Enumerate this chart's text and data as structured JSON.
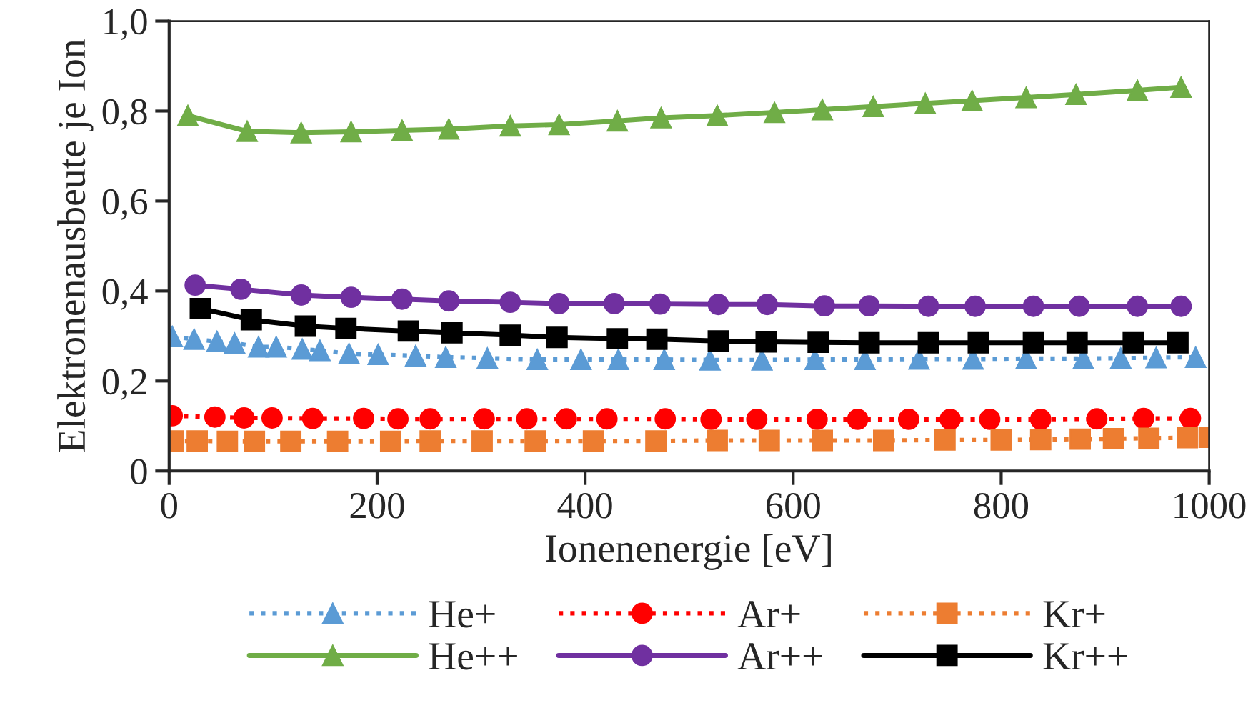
{
  "chart_data": {
    "type": "line",
    "xlabel": "Ionenenergie [eV]",
    "ylabel": "Elektronenausbeute je Ion",
    "xlim": [
      0,
      1000
    ],
    "xticks": [
      0,
      200,
      400,
      600,
      800,
      1000
    ],
    "ylim": [
      0,
      1.0
    ],
    "yticks": [
      {
        "value": 0,
        "label": "0"
      },
      {
        "value": 0.2,
        "label": "0,2"
      },
      {
        "value": 0.4,
        "label": "0,4"
      },
      {
        "value": 0.6,
        "label": "0,6"
      },
      {
        "value": 0.8,
        "label": "0,8"
      },
      {
        "value": 1.0,
        "label": "1,0"
      }
    ],
    "grid": false,
    "legend": "bottom",
    "series": [
      {
        "name": "He+",
        "color": "#5b9bd5",
        "marker": "triangle",
        "line_style": "dotted",
        "x": [
          3,
          24,
          46,
          63,
          86,
          103,
          128,
          145,
          173,
          201,
          237,
          266,
          306,
          354,
          396,
          432,
          476,
          520,
          570,
          621,
          669,
          721,
          773,
          824,
          879,
          915,
          949,
          987
        ],
        "values": [
          0.299,
          0.293,
          0.288,
          0.284,
          0.276,
          0.276,
          0.271,
          0.268,
          0.261,
          0.259,
          0.256,
          0.253,
          0.251,
          0.248,
          0.248,
          0.248,
          0.248,
          0.247,
          0.247,
          0.248,
          0.248,
          0.249,
          0.249,
          0.25,
          0.25,
          0.251,
          0.252,
          0.253
        ]
      },
      {
        "name": "Ar+",
        "color": "#ff0000",
        "marker": "circle",
        "line_style": "dotted",
        "x": [
          3,
          44,
          72,
          99,
          138,
          187,
          220,
          251,
          303,
          344,
          382,
          421,
          477,
          521,
          565,
          623,
          662,
          711,
          751,
          789,
          838,
          892,
          937,
          982
        ],
        "values": [
          0.123,
          0.12,
          0.118,
          0.118,
          0.117,
          0.117,
          0.116,
          0.116,
          0.116,
          0.116,
          0.116,
          0.116,
          0.116,
          0.115,
          0.115,
          0.115,
          0.115,
          0.115,
          0.115,
          0.115,
          0.115,
          0.116,
          0.117,
          0.117
        ]
      },
      {
        "name": "Kr+",
        "color": "#ed7d31",
        "marker": "square",
        "line_style": "dotted",
        "x": [
          4,
          27,
          56,
          82,
          117,
          162,
          213,
          251,
          301,
          352,
          408,
          468,
          527,
          577,
          628,
          687,
          746,
          800,
          838,
          876,
          908,
          942,
          979,
          1000
        ],
        "values": [
          0.067,
          0.067,
          0.066,
          0.066,
          0.066,
          0.066,
          0.066,
          0.067,
          0.067,
          0.067,
          0.067,
          0.067,
          0.068,
          0.068,
          0.068,
          0.068,
          0.069,
          0.069,
          0.07,
          0.071,
          0.072,
          0.073,
          0.074,
          0.075
        ]
      },
      {
        "name": "He++",
        "color": "#70ad47",
        "marker": "triangle",
        "line_style": "solid",
        "x": [
          18,
          75,
          127,
          175,
          224,
          269,
          328,
          375,
          431,
          473,
          527,
          582,
          628,
          677,
          727,
          772,
          824,
          872,
          931,
          973
        ],
        "values": [
          0.79,
          0.755,
          0.752,
          0.754,
          0.757,
          0.76,
          0.767,
          0.77,
          0.778,
          0.785,
          0.79,
          0.797,
          0.803,
          0.81,
          0.817,
          0.823,
          0.83,
          0.837,
          0.846,
          0.853
        ]
      },
      {
        "name": "Ar++",
        "color": "#7030a0",
        "marker": "circle",
        "line_style": "solid",
        "x": [
          25,
          69,
          127,
          175,
          224,
          269,
          328,
          375,
          428,
          472,
          528,
          575,
          630,
          673,
          730,
          775,
          831,
          875,
          931,
          973
        ],
        "values": [
          0.413,
          0.404,
          0.391,
          0.386,
          0.382,
          0.378,
          0.375,
          0.372,
          0.372,
          0.371,
          0.37,
          0.37,
          0.367,
          0.367,
          0.366,
          0.366,
          0.366,
          0.366,
          0.366,
          0.366
        ]
      },
      {
        "name": "Kr++",
        "color": "#000000",
        "marker": "square",
        "line_style": "solid",
        "x": [
          30,
          79,
          131,
          170,
          230,
          272,
          328,
          373,
          431,
          469,
          528,
          574,
          624,
          673,
          730,
          778,
          831,
          873,
          927,
          970
        ],
        "values": [
          0.361,
          0.336,
          0.322,
          0.317,
          0.311,
          0.307,
          0.302,
          0.297,
          0.294,
          0.293,
          0.289,
          0.287,
          0.286,
          0.285,
          0.285,
          0.285,
          0.285,
          0.285,
          0.285,
          0.285
        ]
      }
    ]
  }
}
